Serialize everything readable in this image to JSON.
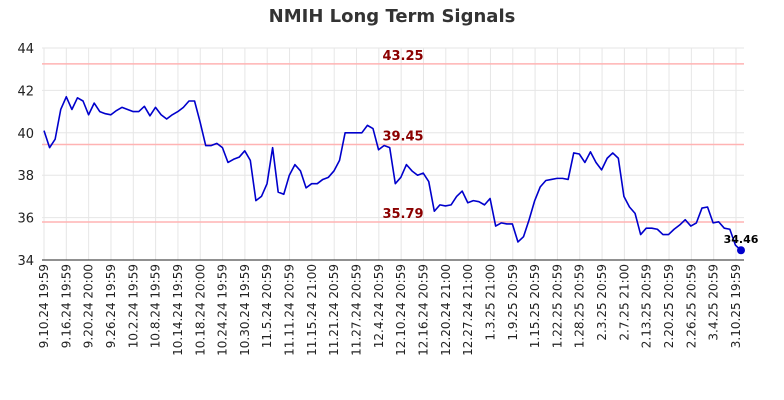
{
  "chart_data": {
    "type": "line",
    "title": "NMIH Long Term Signals",
    "xlabel": "",
    "ylabel": "",
    "ylim": [
      34,
      44
    ],
    "yticks": [
      34,
      36,
      38,
      40,
      42,
      44
    ],
    "grid": true,
    "line_color": "#0000cc",
    "ref_line_color": "#ffb3b3",
    "ref_label_color": "#8b0000",
    "xtick_labels": [
      "9.10.24 19:59",
      "9.16.24 19:59",
      "9.20.24 20:00",
      "9.26.24 19:59",
      "10.2.24 19:59",
      "10.8.24 19:59",
      "10.14.24 19:59",
      "10.18.24 20:00",
      "10.24.24 19:59",
      "10.30.24 19:59",
      "11.5.24 20:59",
      "11.11.24 20:59",
      "11.15.24 21:00",
      "11.21.24 20:59",
      "11.27.24 20:59",
      "12.4.24 20:59",
      "12.10.24 20:59",
      "12.16.24 20:59",
      "12.20.24 21:00",
      "12.27.24 21:00",
      "1.3.25 21:00",
      "1.9.25 20:59",
      "1.15.25 20:59",
      "1.22.25 20:59",
      "1.28.25 20:59",
      "2.3.25 20:59",
      "2.7.25 21:00",
      "2.13.25 20:59",
      "2.20.25 20:59",
      "2.26.25 20:59",
      "3.4.25 20:59",
      "3.10.25 19:59"
    ],
    "ref_lines": [
      {
        "value": 43.25,
        "label": "43.25"
      },
      {
        "value": 39.45,
        "label": "39.45"
      },
      {
        "value": 35.79,
        "label": "35.79"
      }
    ],
    "last_value_label": "34.46",
    "series": [
      {
        "values": [
          40.1,
          39.3,
          39.7,
          41.1,
          41.7,
          41.1,
          41.65,
          41.5,
          40.85,
          41.4,
          41.0,
          40.9,
          40.85,
          41.05,
          41.2,
          41.1,
          41.0,
          41.0,
          41.25,
          40.8,
          41.2,
          40.85,
          40.65,
          40.85,
          41.0,
          41.2,
          41.5,
          41.5,
          40.5,
          39.4,
          39.4,
          39.5,
          39.3,
          38.6,
          38.75,
          38.85,
          39.15,
          38.7,
          36.8,
          37.0,
          37.6,
          39.3,
          37.2,
          37.1,
          38.0,
          38.5,
          38.2,
          37.4,
          37.6,
          37.6,
          37.8,
          37.9,
          38.2,
          38.7,
          40.0,
          40.0,
          40.0,
          40.0,
          40.35,
          40.2,
          39.2,
          39.4,
          39.3,
          37.6,
          37.9,
          38.5,
          38.2,
          38.0,
          38.1,
          37.7,
          36.3,
          36.6,
          36.55,
          36.6,
          37.0,
          37.25,
          36.7,
          36.8,
          36.75,
          36.6,
          36.9,
          35.6,
          35.75,
          35.7,
          35.7,
          34.85,
          35.1,
          35.9,
          36.8,
          37.45,
          37.75,
          37.8,
          37.85,
          37.85,
          37.8,
          39.05,
          39.0,
          38.6,
          39.1,
          38.6,
          38.25,
          38.8,
          39.05,
          38.8,
          37.0,
          36.5,
          36.2,
          35.2,
          35.5,
          35.5,
          35.45,
          35.2,
          35.2,
          35.45,
          35.65,
          35.9,
          35.6,
          35.75,
          36.45,
          36.5,
          35.75,
          35.8,
          35.5,
          35.45,
          34.7,
          34.46
        ]
      }
    ]
  }
}
